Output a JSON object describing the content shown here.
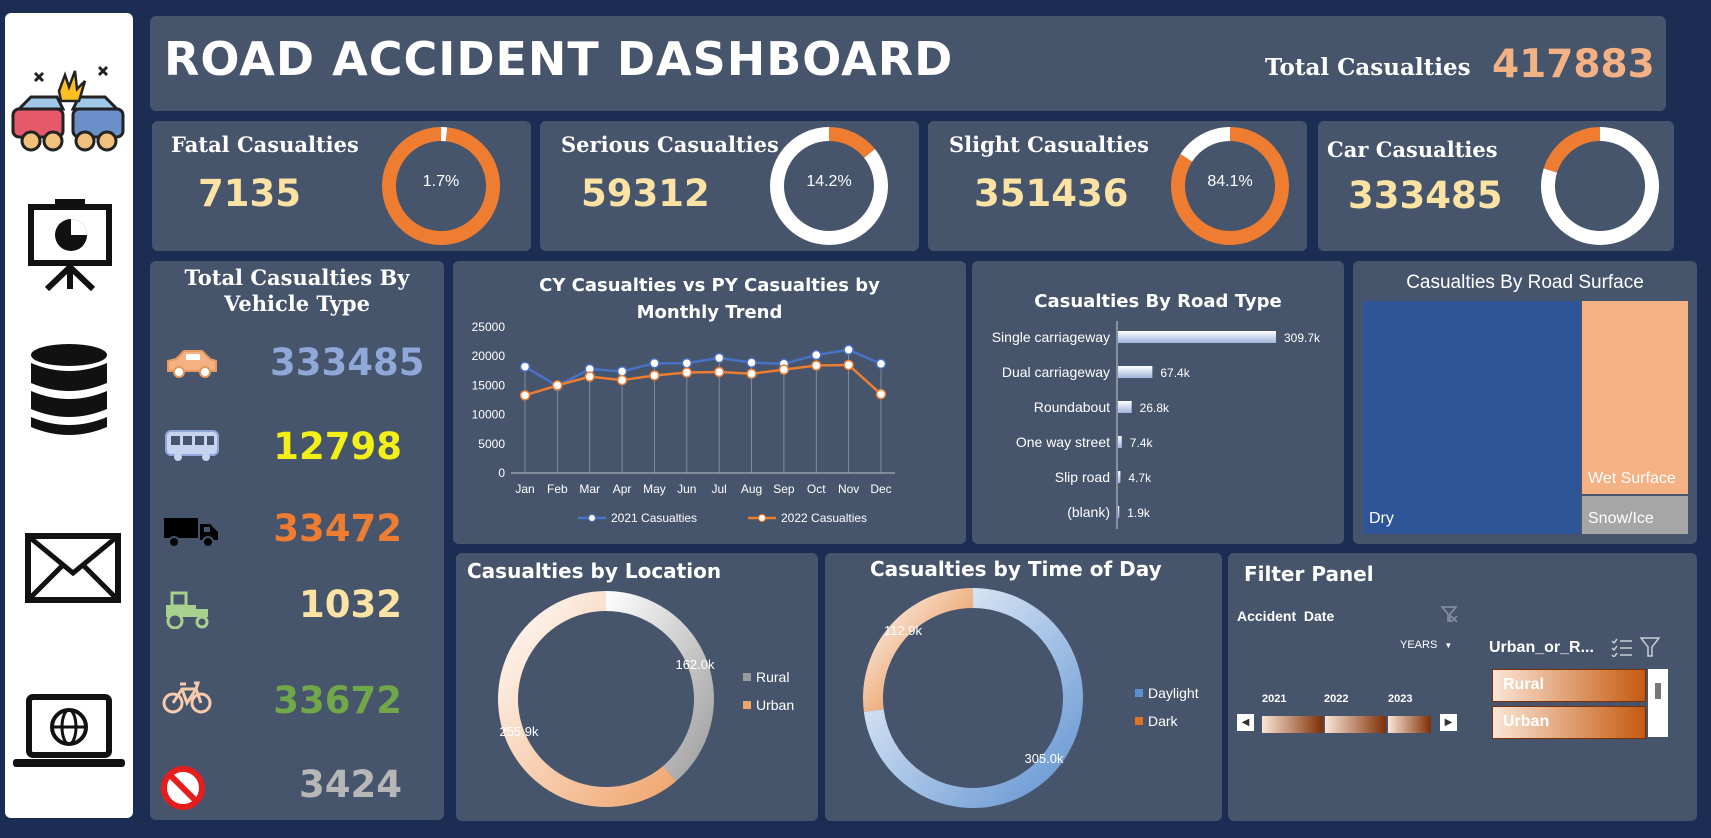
{
  "header": {
    "title": "ROAD ACCIDENT DASHBOARD",
    "total_label": "Total Casualties",
    "total_value": "417883"
  },
  "sidebar": {
    "icons": [
      "car-crash-icon",
      "presentation-icon",
      "database-icon",
      "mail-icon",
      "laptop-globe-icon"
    ]
  },
  "kpis": [
    {
      "label": "Fatal Casualties",
      "value": "7135",
      "pct_label": "1.7%",
      "fraction": 0.017
    },
    {
      "label": "Serious Casualties",
      "value": "59312",
      "pct_label": "14.2%",
      "fraction": 0.142
    },
    {
      "label": "Slight Casualties",
      "value": "351436",
      "pct_label": "84.1%",
      "fraction": 0.841
    },
    {
      "label": "Car Casualties",
      "value": "333485",
      "pct_label": "",
      "fraction": 0.798
    }
  ],
  "vehicle": {
    "title_line1": "Total Casualties By",
    "title_line2": "Vehicle Type",
    "items": [
      {
        "icon": "car-icon",
        "value": "333485",
        "color": "#8fa8d8"
      },
      {
        "icon": "bus-icon",
        "value": "12798",
        "color": "#f3f018"
      },
      {
        "icon": "truck-icon",
        "value": "33472",
        "color": "#ee7d31"
      },
      {
        "icon": "tractor-icon",
        "value": "1032",
        "color": "#fce3a3"
      },
      {
        "icon": "bicycle-icon",
        "value": "33672",
        "color": "#70a849"
      },
      {
        "icon": "no-entry-icon",
        "value": "3424",
        "color": "#b7b7b7"
      }
    ]
  },
  "chart_data": [
    {
      "type": "line",
      "title_line1": "CY Casualties vs PY Casualties by",
      "title_line2": "Monthly Trend",
      "categories": [
        "Jan",
        "Feb",
        "Mar",
        "Apr",
        "May",
        "Jun",
        "Jul",
        "Aug",
        "Sep",
        "Oct",
        "Nov",
        "Dec"
      ],
      "yticks": [
        "25000",
        "20000",
        "15000",
        "10000",
        "5000",
        "0"
      ],
      "ylim": [
        0,
        25000
      ],
      "series": [
        {
          "name": "2021 Casualties",
          "color": "#4a72c4",
          "values": [
            18200,
            14900,
            17800,
            17400,
            18800,
            18800,
            19700,
            18900,
            18700,
            20200,
            21100,
            18700
          ]
        },
        {
          "name": "2022 Casualties",
          "color": "#ee7d31",
          "values": [
            13300,
            15000,
            16500,
            15900,
            16700,
            17200,
            17300,
            17000,
            17700,
            18400,
            18500,
            13500
          ]
        }
      ]
    },
    {
      "type": "bar",
      "title": "Casualties By Road Type",
      "categories": [
        "Single carriageway",
        "Dual carriageway",
        "Roundabout",
        "One way street",
        "Slip road",
        "(blank)"
      ],
      "values": [
        309.7,
        67.4,
        26.8,
        7.4,
        4.7,
        1.9
      ],
      "labels": [
        "309.7k",
        "67.4k",
        "26.8k",
        "7.4k",
        "4.7k",
        "1.9k"
      ]
    },
    {
      "type": "treemap",
      "title": "Casualties By Road Surface",
      "items": [
        {
          "label": "Dry",
          "color": "#2e5597"
        },
        {
          "label": "Wet Surface",
          "color": "#f4b183"
        },
        {
          "label": "Snow/Ice",
          "color": "#a6a6a6"
        }
      ]
    },
    {
      "type": "pie",
      "title": "Casualties by Location",
      "slices": [
        {
          "name": "Rural",
          "value": 162.0,
          "label": "162.0k",
          "color": "#9a9a9a"
        },
        {
          "name": "Urban",
          "value": 255.9,
          "label": "255.9k",
          "color": "#f0a36a"
        }
      ]
    },
    {
      "type": "pie",
      "title": "Casualties by Time of Day",
      "slices": [
        {
          "name": "Daylight",
          "value": 305.0,
          "label": "305.0k",
          "color": "#5b8fd0"
        },
        {
          "name": "Dark",
          "value": 112.9,
          "label": "112.9k",
          "color": "#e0731f"
        }
      ]
    }
  ],
  "filter": {
    "title": "Filter Panel",
    "date_label": "Accident  Date",
    "years_label": "YEARS",
    "years": [
      "2021",
      "2022",
      "2023"
    ],
    "urban_label": "Urban_or_R...",
    "options": [
      "Rural",
      "Urban"
    ]
  }
}
